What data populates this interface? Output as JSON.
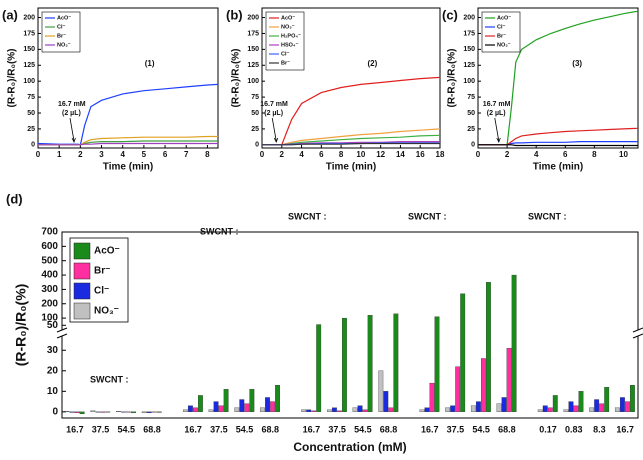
{
  "chart_data": [
    {
      "type": "line",
      "panel_label": "(a)",
      "x_label": "Time (min)",
      "y_label": "(R-R₀)/R₀(%)",
      "compound_label": "(1)",
      "annotation": [
        "16.7 mM",
        "(2 µL)"
      ],
      "xlim": [
        0,
        8.5
      ],
      "xticks": [
        0,
        1,
        2,
        3,
        4,
        5,
        6,
        7,
        8
      ],
      "ylim": [
        -5,
        215
      ],
      "yticks": [
        0,
        25,
        50,
        75,
        100,
        125,
        150,
        175,
        200
      ],
      "x": [
        0,
        1,
        1.9,
        2,
        2.2,
        2.5,
        3,
        4,
        5,
        6,
        7,
        8,
        8.5
      ],
      "series": [
        {
          "name": "AcO⁻",
          "color": "#1f3fff",
          "values": [
            2,
            1,
            1,
            0,
            30,
            60,
            70,
            80,
            85,
            88,
            91,
            94,
            95
          ]
        },
        {
          "name": "Cl⁻",
          "color": "#40a040",
          "values": [
            0,
            0,
            0,
            0,
            2,
            4,
            5,
            5,
            6,
            6,
            6,
            6,
            6
          ]
        },
        {
          "name": "Br⁻",
          "color": "#e0a020",
          "values": [
            0,
            0,
            0,
            0,
            4,
            8,
            10,
            11,
            12,
            12,
            12,
            13,
            13
          ]
        },
        {
          "name": "NO₃⁻",
          "color": "#a040c0",
          "values": [
            0,
            0,
            0,
            0,
            1,
            1,
            2,
            2,
            2,
            2,
            2,
            2,
            2
          ]
        }
      ]
    },
    {
      "type": "line",
      "panel_label": "(b)",
      "x_label": "Time (min)",
      "y_label": "(R-R₀)/R₀(%)",
      "compound_label": "(2)",
      "annotation": [
        "16.7 mM",
        "(2 µL)"
      ],
      "xlim": [
        0,
        18
      ],
      "xticks": [
        0,
        2,
        4,
        6,
        8,
        10,
        12,
        14,
        16,
        18
      ],
      "ylim": [
        -5,
        215
      ],
      "yticks": [
        0,
        25,
        50,
        75,
        100,
        125,
        150,
        175,
        200
      ],
      "x": [
        0,
        1,
        2,
        2.5,
        3,
        4,
        6,
        8,
        10,
        12,
        14,
        16,
        18
      ],
      "series": [
        {
          "name": "AcO⁻",
          "color": "#e02020",
          "values": [
            0,
            0,
            0,
            20,
            40,
            65,
            82,
            90,
            95,
            98,
            101,
            104,
            106
          ]
        },
        {
          "name": "NO₃⁻",
          "color": "#f0a040",
          "values": [
            0,
            0,
            0,
            2,
            4,
            7,
            10,
            13,
            16,
            18,
            21,
            23,
            25
          ]
        },
        {
          "name": "H₂PO₄⁻",
          "color": "#40b040",
          "values": [
            0,
            0,
            0,
            1,
            2,
            4,
            6,
            8,
            10,
            11,
            12,
            14,
            15
          ]
        },
        {
          "name": "HSO₄⁻",
          "color": "#b040c0",
          "values": [
            0,
            0,
            0,
            1,
            1,
            2,
            3,
            3,
            4,
            4,
            5,
            5,
            5
          ]
        },
        {
          "name": "Cl⁻",
          "color": "#4060ff",
          "values": [
            0,
            0,
            0,
            0,
            1,
            1,
            2,
            2,
            2,
            3,
            3,
            3,
            3
          ]
        },
        {
          "name": "Br⁻",
          "color": "#333333",
          "values": [
            0,
            0,
            0,
            0,
            0,
            1,
            1,
            1,
            2,
            2,
            2,
            2,
            2
          ]
        }
      ]
    },
    {
      "type": "line",
      "panel_label": "(c)",
      "x_label": "Time (min)",
      "y_label": "(R-R₀)/R₀(%)",
      "compound_label": "(3)",
      "annotation": [
        "16.7 mM",
        "(2 µL)"
      ],
      "xlim": [
        0,
        11
      ],
      "xticks": [
        0,
        2,
        4,
        6,
        8,
        10
      ],
      "ylim": [
        -5,
        215
      ],
      "yticks": [
        0,
        25,
        50,
        75,
        100,
        125,
        150,
        175,
        200
      ],
      "x": [
        0,
        1,
        2,
        2.3,
        2.6,
        3,
        4,
        5,
        6,
        7,
        8,
        9,
        10,
        11
      ],
      "series": [
        {
          "name": "AcO⁻",
          "color": "#20a020",
          "values": [
            0,
            0,
            0,
            60,
            130,
            150,
            165,
            175,
            183,
            190,
            196,
            201,
            206,
            210
          ]
        },
        {
          "name": "Cl⁻",
          "color": "#2040ff",
          "values": [
            0,
            0,
            0,
            2,
            3,
            3,
            4,
            4,
            4,
            5,
            5,
            5,
            5,
            5
          ]
        },
        {
          "name": "Br⁻",
          "color": "#e02020",
          "values": [
            0,
            0,
            0,
            5,
            10,
            14,
            17,
            19,
            21,
            22,
            23,
            24,
            25,
            26
          ]
        },
        {
          "name": "NO₃⁻",
          "color": "#000000",
          "values": [
            0,
            0,
            0,
            0,
            -1,
            -1,
            -1,
            -1,
            -1,
            -1,
            -1,
            -1,
            -1,
            -1
          ]
        }
      ]
    },
    {
      "type": "bar",
      "panel_label": "(d)",
      "x_label": "Concentration (mM)",
      "y_label": "(R-R₀)/R₀(%)",
      "structure_labels": [
        "SWCNT :",
        "SWCNT :",
        "SWCNT :",
        "SWCNT :",
        "SWCNT :"
      ],
      "categories": [
        "16.7",
        "37.5",
        "54.5",
        "68.8",
        "16.7",
        "37.5",
        "54.5",
        "68.8",
        "16.7",
        "37.5",
        "54.5",
        "68.8",
        "16.7",
        "37.5",
        "54.5",
        "68.8",
        "0.17",
        "0.83",
        "8.3",
        "16.7"
      ],
      "ylim": [
        -3,
        700
      ],
      "axis_break": [
        35,
        45
      ],
      "yticks": [
        0,
        10,
        20,
        30,
        50,
        100,
        200,
        300,
        400,
        500,
        600,
        700
      ],
      "series": [
        {
          "name": "AcO⁻",
          "color": "#1a8a1a",
          "values": [
            -1,
            0,
            -0.5,
            -0.3,
            8,
            11,
            11,
            13,
            55,
            100,
            120,
            130,
            110,
            270,
            350,
            400,
            8,
            10,
            12,
            13
          ]
        },
        {
          "name": "Br⁻",
          "color": "#ff2fa0",
          "values": [
            -0.5,
            -0.3,
            -0.2,
            -0.2,
            2,
            3,
            4,
            5,
            0.5,
            0.5,
            1,
            2,
            14,
            22,
            26,
            31,
            2,
            3,
            4,
            5
          ]
        },
        {
          "name": "Cl⁻",
          "color": "#1a2ae0",
          "values": [
            -0.3,
            -0.2,
            0,
            -0.5,
            3,
            5,
            6,
            7,
            1,
            2,
            3,
            10,
            2,
            3,
            5,
            7,
            3,
            5,
            6,
            7
          ]
        },
        {
          "name": "NO₃⁻",
          "color": "#c0c0c0",
          "values": [
            0.3,
            0.5,
            0.3,
            -0.5,
            1,
            1,
            2,
            2,
            1,
            1,
            2,
            20,
            1,
            2,
            3,
            4,
            1,
            1,
            2,
            2
          ]
        }
      ]
    }
  ]
}
